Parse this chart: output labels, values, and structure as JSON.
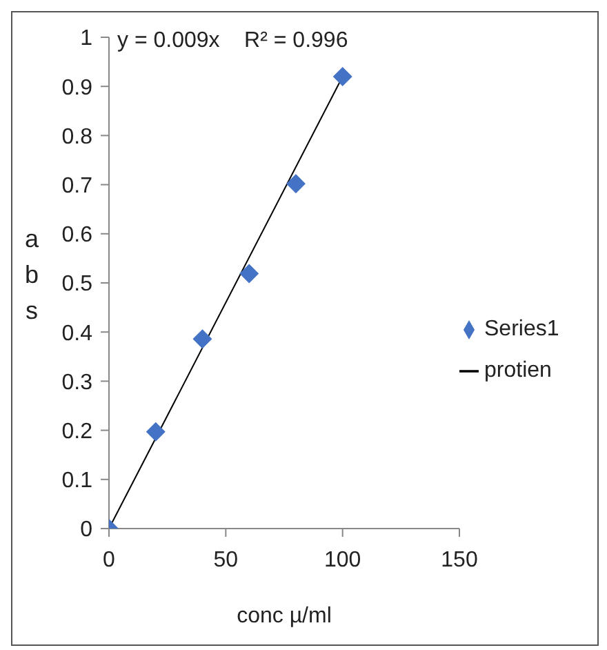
{
  "chart_data": {
    "type": "scatter",
    "xlabel": "conc µ/ml",
    "ylabel": "abs",
    "annotations": [
      "y = 0.009x    R² = 0.996"
    ],
    "x": [
      0,
      20,
      40,
      60,
      80,
      100
    ],
    "series": [
      {
        "name": "Series1",
        "color": "#4472c4",
        "marker": "diamond",
        "values": [
          0,
          0.197,
          0.386,
          0.519,
          0.702,
          0.92
        ]
      },
      {
        "name": "protien",
        "type": "line",
        "color": "#000000",
        "marker": "none",
        "x": [
          0,
          100
        ],
        "values": [
          0,
          0.92
        ]
      }
    ],
    "xlim": [
      0,
      150
    ],
    "xticks": [
      0,
      50,
      100,
      150
    ],
    "ylim": [
      0,
      1
    ],
    "yticks": [
      0,
      0.1,
      0.2,
      0.3,
      0.4,
      0.5,
      0.6,
      0.7,
      0.8,
      0.9,
      1
    ],
    "grid": false,
    "legend": "right"
  }
}
